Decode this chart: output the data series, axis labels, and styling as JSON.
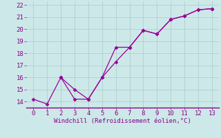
{
  "xlabel": "Windchill (Refroidissement éolien,°C)",
  "line1_x": [
    0,
    1,
    2,
    3,
    4,
    5,
    6,
    7,
    8,
    9,
    10,
    11,
    12,
    13
  ],
  "line1_y": [
    14.2,
    13.8,
    16.0,
    15.0,
    14.2,
    16.0,
    18.5,
    18.5,
    19.9,
    19.6,
    20.8,
    21.1,
    21.6,
    21.7
  ],
  "line2_x": [
    2,
    3,
    4,
    5,
    6,
    7,
    8,
    9,
    10,
    11,
    12,
    13
  ],
  "line2_y": [
    16.0,
    14.2,
    14.2,
    16.0,
    17.3,
    18.5,
    19.9,
    19.6,
    20.8,
    21.1,
    21.6,
    21.7
  ],
  "color": "#990099",
  "marker": "D",
  "markersize": 2.5,
  "linewidth": 0.9,
  "xlim": [
    -0.5,
    13.5
  ],
  "ylim": [
    13.5,
    22.3
  ],
  "yticks": [
    14,
    15,
    16,
    17,
    18,
    19,
    20,
    21,
    22
  ],
  "xticks": [
    0,
    1,
    2,
    3,
    4,
    5,
    6,
    7,
    8,
    9,
    10,
    11,
    12,
    13
  ],
  "bg_color": "#cde8e8",
  "grid_color": "#aed0d0",
  "tick_color": "#880088",
  "label_color": "#880088",
  "tick_fontsize": 6.5,
  "xlabel_fontsize": 6.5
}
